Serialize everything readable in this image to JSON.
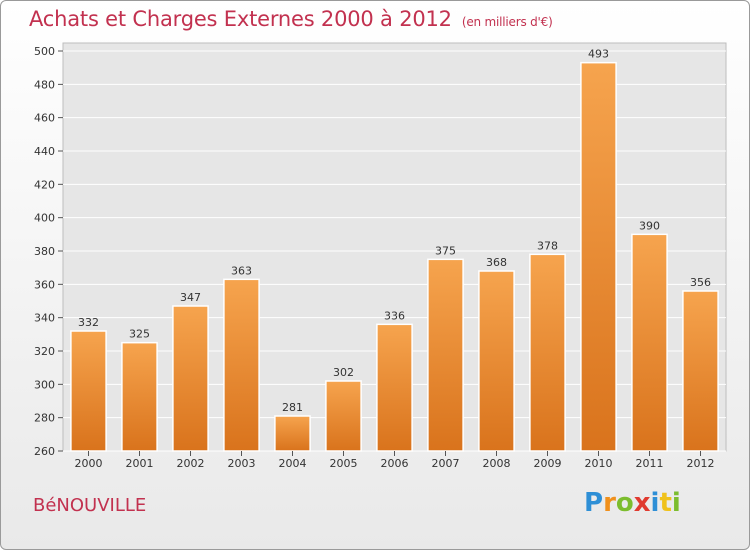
{
  "header": {
    "title": "Achats et Charges Externes 2000 à 2012",
    "unit": "(en milliers d'€)"
  },
  "footer": {
    "commune": "BéNOUVILLE",
    "logo_text": "Proxiti"
  },
  "colors": {
    "title": "#c2314f",
    "bar_light": "#f6a44e",
    "bar_dark": "#d9731c"
  },
  "chart_data": {
    "type": "bar",
    "title": "Achats et Charges Externes 2000 à 2012",
    "subtitle": "(en milliers d'€)",
    "xlabel": "",
    "ylabel": "",
    "categories": [
      "2000",
      "2001",
      "2002",
      "2003",
      "2004",
      "2005",
      "2006",
      "2007",
      "2008",
      "2009",
      "2010",
      "2011",
      "2012"
    ],
    "values": [
      332,
      325,
      347,
      363,
      281,
      302,
      336,
      375,
      368,
      378,
      493,
      390,
      356
    ],
    "ylim": [
      260,
      500
    ],
    "yticks": [
      260,
      280,
      300,
      320,
      340,
      360,
      380,
      400,
      420,
      440,
      460,
      480,
      500
    ],
    "grid": true,
    "legend": "none"
  }
}
